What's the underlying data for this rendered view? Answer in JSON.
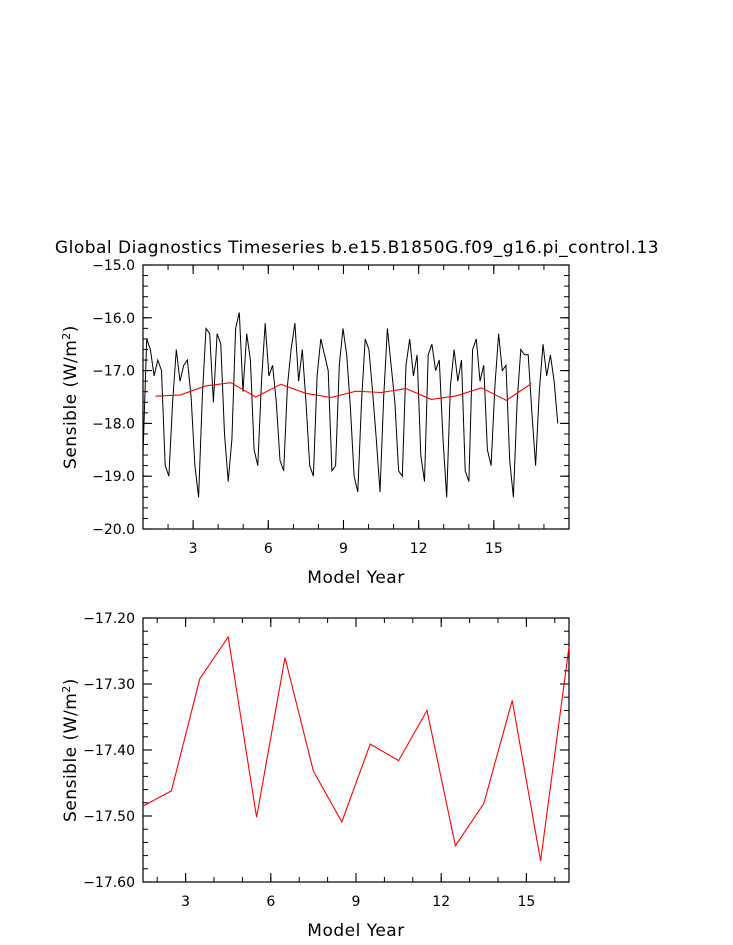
{
  "title": "Global Diagnostics Timeseries b.e15.B1850G.f09_g16.pi_control.13",
  "colors": {
    "monthly": "#000000",
    "annual": "#ff0000",
    "axis": "#000000"
  },
  "chart_data": [
    {
      "type": "line",
      "xlabel": "Model Year",
      "ylabel": "Sensible (W/m²)",
      "ylabel_parts": {
        "base": "Sensible (W/m",
        "sup": "2",
        "end": ")"
      },
      "xlim": [
        1,
        18
      ],
      "ylim": [
        -20.0,
        -15.0
      ],
      "x_ticks": [
        3,
        6,
        9,
        12,
        15
      ],
      "y_ticks": [
        -20.0,
        -19.0,
        -18.0,
        -17.0,
        -16.0,
        -15.0
      ],
      "y_tick_labels": [
        "−20.0",
        "−19.0",
        "−18.0",
        "−17.0",
        "−16.0",
        "−15.0"
      ],
      "series": [
        {
          "values": [
            -18.6,
            -16.4,
            -16.6,
            -17.1,
            -16.8,
            -17.0,
            -18.8,
            -19.0,
            -17.6,
            -16.6,
            -17.2,
            -16.9,
            -16.8,
            -17.5,
            -18.8,
            -19.4,
            -17.5,
            -16.2,
            -16.3,
            -17.6,
            -16.3,
            -16.5,
            -18.2,
            -19.1,
            -18.3,
            -16.2,
            -15.9,
            -17.4,
            -16.3,
            -16.8,
            -18.5,
            -18.8,
            -17.2,
            -16.1,
            -17.1,
            -16.9,
            -17.6,
            -18.7,
            -18.9,
            -17.3,
            -16.6,
            -16.1,
            -17.2,
            -16.6,
            -17.6,
            -18.8,
            -19.0,
            -17.1,
            -16.4,
            -16.7,
            -17.0,
            -18.9,
            -18.8,
            -16.9,
            -16.2,
            -16.7,
            -17.7,
            -19.0,
            -19.3,
            -17.6,
            -16.4,
            -16.6,
            -17.4,
            -18.3,
            -19.3,
            -17.5,
            -16.2,
            -16.9,
            -17.6,
            -18.9,
            -19.0,
            -16.9,
            -16.4,
            -17.1,
            -16.7,
            -18.6,
            -19.1,
            -16.7,
            -16.5,
            -17.0,
            -16.8,
            -18.3,
            -19.4,
            -17.3,
            -16.6,
            -17.2,
            -16.8,
            -18.9,
            -19.1,
            -16.6,
            -16.4,
            -17.2,
            -16.9,
            -18.5,
            -18.8,
            -17.3,
            -16.3,
            -17.0,
            -16.9,
            -18.7,
            -19.4,
            -17.6,
            -16.6,
            -16.7,
            -16.7,
            -17.8,
            -18.8,
            -17.4,
            -16.5,
            -17.1,
            -16.7,
            -17.2,
            -18.0
          ]
        },
        {
          "values": [
            -17.485,
            -17.46,
            -17.29,
            -17.23,
            -17.5,
            -17.26,
            -17.43,
            -17.51,
            -17.39,
            -17.415,
            -17.34,
            -17.545,
            -17.48,
            -17.325,
            -17.565,
            -17.245
          ]
        }
      ],
      "series_x": {
        "monthly_start": 1.0,
        "monthly_step": 0.1478,
        "annual": [
          1.5,
          2.5,
          3.5,
          4.5,
          5.5,
          6.5,
          7.5,
          8.5,
          9.5,
          10.5,
          11.5,
          12.5,
          13.5,
          14.5,
          15.5,
          16.5
        ]
      }
    },
    {
      "type": "line",
      "xlabel": "Model Year",
      "ylabel": "Sensible (W/m²)",
      "ylabel_parts": {
        "base": "Sensible (W/m",
        "sup": "2",
        "end": ")"
      },
      "xlim": [
        1.5,
        16.5
      ],
      "ylim": [
        -17.6,
        -17.2
      ],
      "x_ticks": [
        3,
        6,
        9,
        12,
        15
      ],
      "y_ticks": [
        -17.6,
        -17.5,
        -17.4,
        -17.3,
        -17.2
      ],
      "y_tick_labels": [
        "−17.60",
        "−17.50",
        "−17.40",
        "−17.30",
        "−17.20"
      ],
      "series": [
        {
          "x": [
            1.5,
            2.5,
            3.5,
            4.5,
            5.5,
            6.5,
            7.5,
            8.5,
            9.5,
            10.5,
            11.5,
            12.5,
            13.5,
            14.5,
            15.5,
            16.5
          ],
          "values": [
            -17.485,
            -17.462,
            -17.292,
            -17.229,
            -17.502,
            -17.26,
            -17.432,
            -17.509,
            -17.391,
            -17.416,
            -17.34,
            -17.545,
            -17.481,
            -17.325,
            -17.568,
            -17.244
          ]
        }
      ]
    }
  ]
}
